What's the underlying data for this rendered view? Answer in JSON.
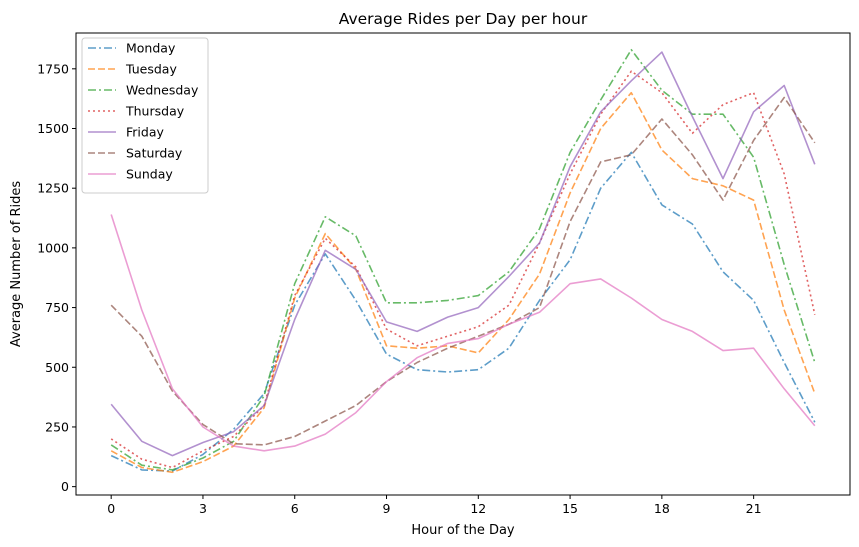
{
  "chart_data": {
    "type": "line",
    "title": "Average Rides per Day per hour",
    "xlabel": "Hour of the Day",
    "ylabel": "Average Number of Rides",
    "xlim": [
      -1.15,
      24.15
    ],
    "ylim": [
      -35,
      1900
    ],
    "xticks": [
      0,
      3,
      6,
      9,
      12,
      15,
      18,
      21
    ],
    "xtick_labels": [
      "0",
      "3",
      "6",
      "9",
      "12",
      "15",
      "18",
      "21"
    ],
    "yticks": [
      0,
      250,
      500,
      750,
      1000,
      1250,
      1500,
      1750
    ],
    "ytick_labels": [
      "0",
      "250",
      "500",
      "750",
      "1000",
      "1250",
      "1500",
      "1750"
    ],
    "grid": false,
    "legend_position": "upper-left",
    "x": [
      0,
      1,
      2,
      3,
      4,
      5,
      6,
      7,
      8,
      9,
      10,
      11,
      12,
      13,
      14,
      15,
      16,
      17,
      18,
      19,
      20,
      21,
      22,
      23
    ],
    "series": [
      {
        "name": "Monday",
        "color": "#1f77b4",
        "dash": "dashdot",
        "values": [
          130,
          70,
          65,
          135,
          240,
          390,
          760,
          975,
          780,
          555,
          490,
          480,
          490,
          580,
          780,
          950,
          1250,
          1400,
          1180,
          1100,
          900,
          780,
          520,
          270
        ]
      },
      {
        "name": "Tuesday",
        "color": "#ff7f0e",
        "dash": "dashed",
        "values": [
          150,
          80,
          60,
          105,
          170,
          330,
          790,
          1060,
          910,
          590,
          580,
          590,
          560,
          700,
          890,
          1230,
          1500,
          1650,
          1410,
          1290,
          1260,
          1200,
          740,
          390
        ]
      },
      {
        "name": "Wednesday",
        "color": "#2ca02c",
        "dash": "dashdot",
        "values": [
          175,
          90,
          70,
          120,
          190,
          380,
          850,
          1130,
          1050,
          770,
          770,
          780,
          800,
          900,
          1080,
          1400,
          1620,
          1830,
          1660,
          1560,
          1560,
          1380,
          930,
          520
        ]
      },
      {
        "name": "Thursday",
        "color": "#d62728",
        "dash": "dotted",
        "values": [
          200,
          115,
          80,
          150,
          210,
          340,
          800,
          1040,
          920,
          660,
          590,
          630,
          670,
          760,
          1020,
          1310,
          1560,
          1740,
          1650,
          1480,
          1600,
          1650,
          1310,
          720
        ]
      },
      {
        "name": "Friday",
        "color": "#9467bd",
        "dash": "solid",
        "values": [
          345,
          190,
          130,
          185,
          230,
          340,
          700,
          990,
          910,
          690,
          650,
          710,
          750,
          880,
          1020,
          1340,
          1570,
          1700,
          1820,
          1550,
          1290,
          1570,
          1680,
          1350
        ]
      },
      {
        "name": "Saturday",
        "color": "#8c564b",
        "dash": "dashed",
        "values": [
          760,
          630,
          400,
          260,
          180,
          175,
          210,
          275,
          340,
          440,
          520,
          580,
          630,
          680,
          750,
          1110,
          1360,
          1390,
          1540,
          1390,
          1200,
          1450,
          1630,
          1440
        ]
      },
      {
        "name": "Sunday",
        "color": "#e377c2",
        "dash": "solid",
        "values": [
          1140,
          740,
          410,
          250,
          170,
          150,
          170,
          220,
          310,
          440,
          540,
          600,
          620,
          680,
          730,
          850,
          870,
          790,
          700,
          650,
          570,
          580,
          410,
          255
        ]
      }
    ]
  }
}
